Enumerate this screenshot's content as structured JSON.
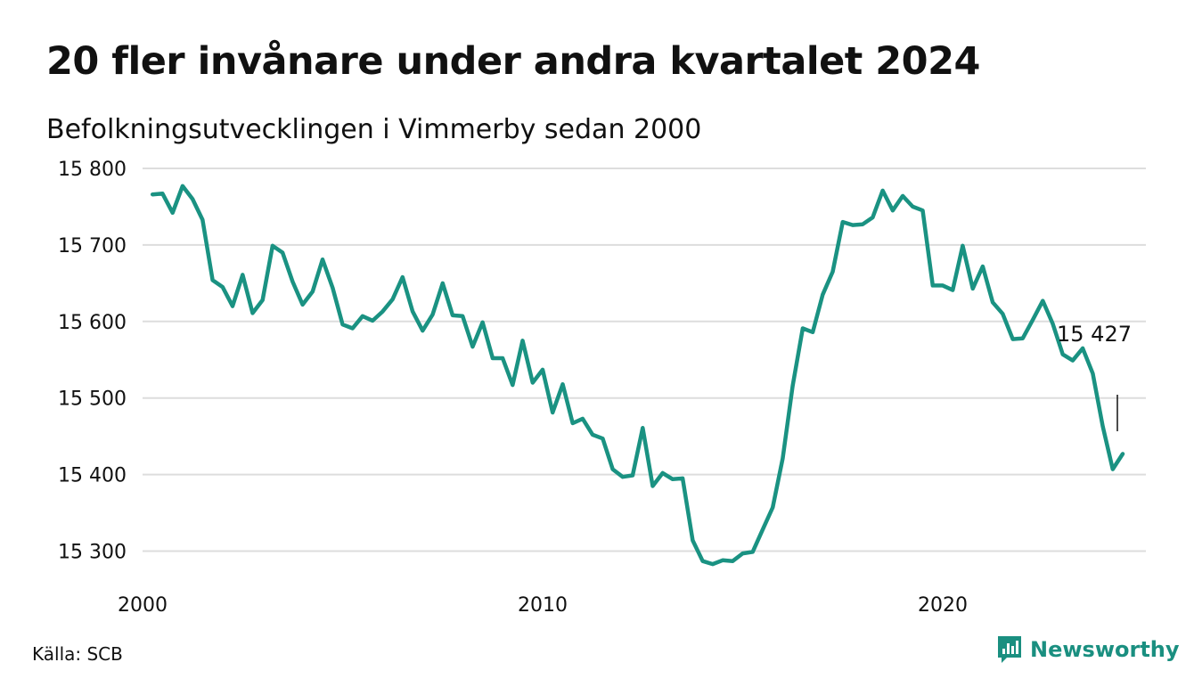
{
  "title": "20 fler invånare under andra kvartalet 2024",
  "subtitle": "Befolkningsutvecklingen i Vimmerby sedan 2000",
  "source": "Källa: SCB",
  "brand": "Newsworthy",
  "colors": {
    "line": "#1a9282",
    "grid": "#dddddd",
    "brand": "#1a8f80",
    "text": "#111111"
  },
  "chart_data": {
    "type": "line",
    "title": "20 fler invånare under andra kvartalet 2024",
    "subtitle": "Befolkningsutvecklingen i Vimmerby sedan 2000",
    "xlabel": "",
    "ylabel": "",
    "xlim": [
      2000,
      2024.5
    ],
    "ylim": [
      15270,
      15800
    ],
    "yticks": [
      15300,
      15400,
      15500,
      15600,
      15700,
      15800
    ],
    "ytick_labels": [
      "15 300",
      "15 400",
      "15 500",
      "15 600",
      "15 700",
      "15 800"
    ],
    "xticks": [
      2000,
      2010,
      2020
    ],
    "xtick_labels": [
      "2000",
      "2010",
      "2020"
    ],
    "grid": true,
    "annotation": {
      "label": "15 427",
      "value": 15427
    },
    "x": [
      2000.25,
      2000.5,
      2000.75,
      2001,
      2001.25,
      2001.5,
      2001.75,
      2002,
      2002.25,
      2002.5,
      2002.75,
      2003,
      2003.25,
      2003.5,
      2003.75,
      2004,
      2004.25,
      2004.5,
      2004.75,
      2005,
      2005.25,
      2005.5,
      2005.75,
      2006,
      2006.25,
      2006.5,
      2006.75,
      2007,
      2007.25,
      2007.5,
      2007.75,
      2008,
      2008.25,
      2008.5,
      2008.75,
      2009,
      2009.25,
      2009.5,
      2009.75,
      2010,
      2010.25,
      2010.5,
      2010.75,
      2011,
      2011.25,
      2011.5,
      2011.75,
      2012,
      2012.25,
      2012.5,
      2012.75,
      2013,
      2013.25,
      2013.5,
      2013.75,
      2014,
      2014.25,
      2014.5,
      2014.75,
      2015,
      2015.25,
      2015.5,
      2015.75,
      2016,
      2016.25,
      2016.5,
      2016.75,
      2017,
      2017.25,
      2017.5,
      2017.75,
      2018,
      2018.25,
      2018.5,
      2018.75,
      2019,
      2019.25,
      2019.5,
      2019.75,
      2020,
      2020.25,
      2020.5,
      2020.75,
      2021,
      2021.25,
      2021.5,
      2021.75,
      2022,
      2022.25,
      2022.5,
      2022.75,
      2023,
      2023.25,
      2023.5,
      2023.75,
      2024,
      2024.25,
      2024.5
    ],
    "series": [
      {
        "values": [
          15766,
          15767,
          15742,
          15777,
          15760,
          15733,
          15654,
          15645,
          15620,
          15661,
          15611,
          15628,
          15699,
          15690,
          15652,
          15622,
          15639,
          15681,
          15644,
          15596,
          15591,
          15607,
          15601,
          15613,
          15629,
          15658,
          15613,
          15588,
          15609,
          15650,
          15608,
          15607,
          15567,
          15599,
          15552,
          15552,
          15517,
          15575,
          15520,
          15537,
          15481,
          15518,
          15467,
          15473,
          15452,
          15447,
          15407,
          15397,
          15399,
          15461,
          15385,
          15402,
          15394,
          15395,
          15314,
          15287,
          15283,
          15288,
          15287,
          15297,
          15299,
          15328,
          15357,
          15421,
          15516,
          15591,
          15586,
          15635,
          15665,
          15730,
          15726,
          15727,
          15736,
          15771,
          15745,
          15764,
          15750,
          15745,
          15647,
          15647,
          15641,
          15699,
          15643,
          15672,
          15625,
          15610,
          15577,
          15578,
          15602,
          15627,
          15597,
          15557,
          15549,
          15565,
          15532,
          15463,
          15407,
          15427
        ]
      }
    ]
  }
}
